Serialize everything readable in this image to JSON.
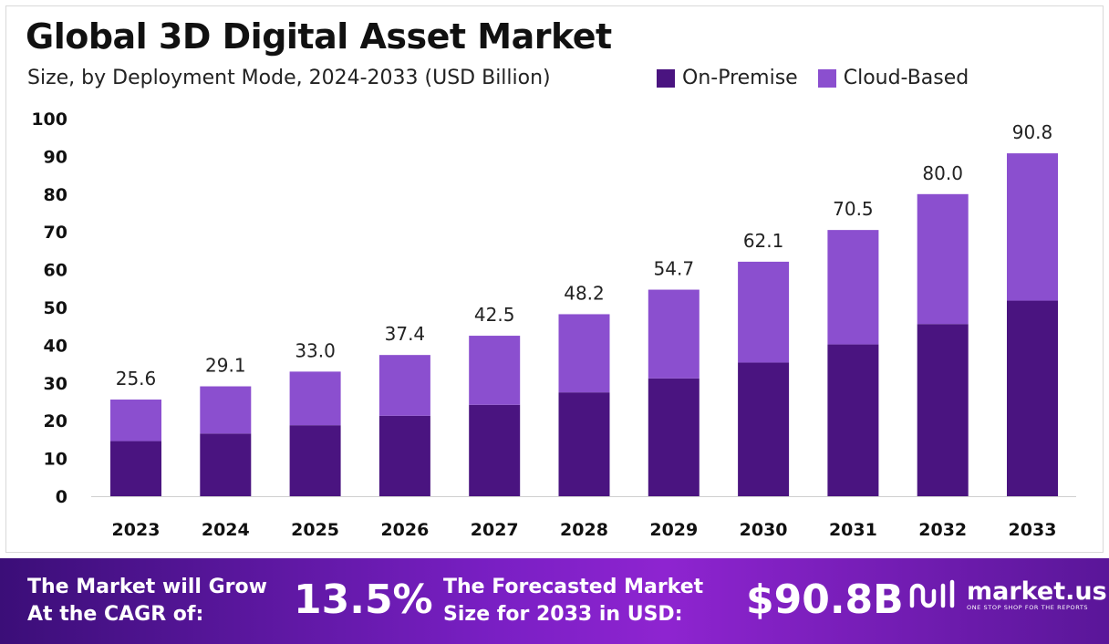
{
  "header": {
    "title": "Global 3D Digital Asset Market",
    "subtitle": "Size, by Deployment Mode, 2024-2033 (USD Billion)"
  },
  "legend": [
    {
      "label": "On-Premise",
      "color": "#4a1480"
    },
    {
      "label": "Cloud-Based",
      "color": "#8b4fcf"
    }
  ],
  "chart_data": {
    "type": "bar",
    "stacked": true,
    "categories": [
      "2023",
      "2024",
      "2025",
      "2026",
      "2027",
      "2028",
      "2029",
      "2030",
      "2031",
      "2032",
      "2033"
    ],
    "series": [
      {
        "name": "On-Premise",
        "color": "#4a1480",
        "values": [
          14.6,
          16.6,
          18.8,
          21.3,
          24.2,
          27.5,
          31.2,
          35.4,
          40.2,
          45.6,
          51.8
        ]
      },
      {
        "name": "Cloud-Based",
        "color": "#8b4fcf",
        "values": [
          11.0,
          12.5,
          14.2,
          16.1,
          18.3,
          20.7,
          23.5,
          26.7,
          30.3,
          34.4,
          39.0
        ]
      }
    ],
    "totals": [
      "25.6",
      "29.1",
      "33.0",
      "37.4",
      "42.5",
      "48.2",
      "54.7",
      "62.1",
      "70.5",
      "80.0",
      "90.8"
    ],
    "yticks": [
      0,
      10,
      20,
      30,
      40,
      50,
      60,
      70,
      80,
      90,
      100
    ],
    "ylim": [
      0,
      100
    ],
    "grid": false,
    "legend_position": "top-right"
  },
  "banner": {
    "cagr_text_1": "The Market will Grow",
    "cagr_text_2": "At the CAGR of:",
    "cagr_value": "13.5%",
    "forecast_text_1": "The Forecasted Market",
    "forecast_text_2": "Size for 2033 in USD:",
    "forecast_value": "$90.8B",
    "logo_name": "market.us",
    "logo_tagline": "ONE STOP SHOP FOR THE REPORTS"
  }
}
